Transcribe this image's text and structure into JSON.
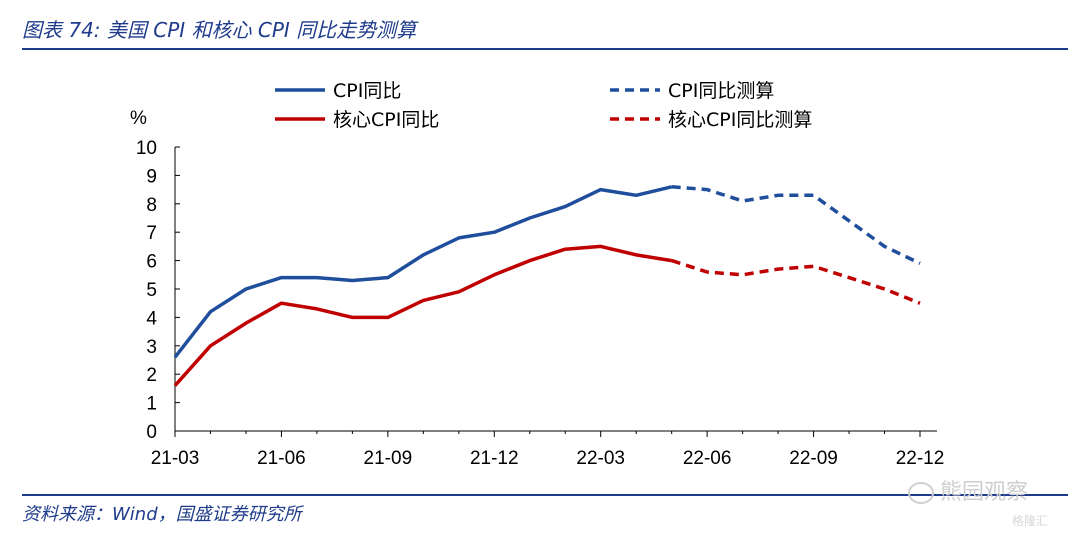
{
  "figure_title": "图表 74: 美国 CPI 和核心 CPI 同比走势测算",
  "source": "资料来源：Wind，国盛证券研究所",
  "watermark": "熊园观察",
  "watermark_small": "格隆汇",
  "chart_data": {
    "type": "line",
    "title": "",
    "ylabel": "%",
    "xlabel": "",
    "ylim": [
      0,
      10
    ],
    "yticks": [
      0,
      1,
      2,
      3,
      4,
      5,
      6,
      7,
      8,
      9,
      10
    ],
    "x": [
      "21-03",
      "21-04",
      "21-05",
      "21-06",
      "21-07",
      "21-08",
      "21-09",
      "21-10",
      "21-11",
      "21-12",
      "22-01",
      "22-02",
      "22-03",
      "22-04",
      "22-05",
      "22-06",
      "22-07",
      "22-08",
      "22-09",
      "22-10",
      "22-11",
      "22-12"
    ],
    "xtick_labels": [
      "21-03",
      "21-06",
      "21-09",
      "21-12",
      "22-03",
      "22-06",
      "22-09",
      "22-12"
    ],
    "grid": false,
    "legend": "top",
    "series": [
      {
        "name": "CPI同比",
        "color": "#1f4e9c",
        "style": "solid",
        "values": [
          2.6,
          4.2,
          5.0,
          5.4,
          5.4,
          5.3,
          5.4,
          6.2,
          6.8,
          7.0,
          7.5,
          7.9,
          8.5,
          8.3,
          8.6,
          null,
          null,
          null,
          null,
          null,
          null,
          null
        ]
      },
      {
        "name": "CPI同比测算",
        "color": "#1f4e9c",
        "style": "dashed",
        "values": [
          null,
          null,
          null,
          null,
          null,
          null,
          null,
          null,
          null,
          null,
          null,
          null,
          null,
          null,
          8.6,
          8.5,
          8.1,
          8.3,
          8.3,
          7.4,
          6.5,
          5.9
        ]
      },
      {
        "name": "核心CPI同比",
        "color": "#c00000",
        "style": "solid",
        "values": [
          1.6,
          3.0,
          3.8,
          4.5,
          4.3,
          4.0,
          4.0,
          4.6,
          4.9,
          5.5,
          6.0,
          6.4,
          6.5,
          6.2,
          6.0,
          null,
          null,
          null,
          null,
          null,
          null,
          null
        ]
      },
      {
        "name": "核心CPI同比测算",
        "color": "#c00000",
        "style": "dashed",
        "values": [
          null,
          null,
          null,
          null,
          null,
          null,
          null,
          null,
          null,
          null,
          null,
          null,
          null,
          null,
          6.0,
          5.6,
          5.5,
          5.7,
          5.8,
          5.4,
          5.0,
          4.5
        ]
      }
    ]
  }
}
